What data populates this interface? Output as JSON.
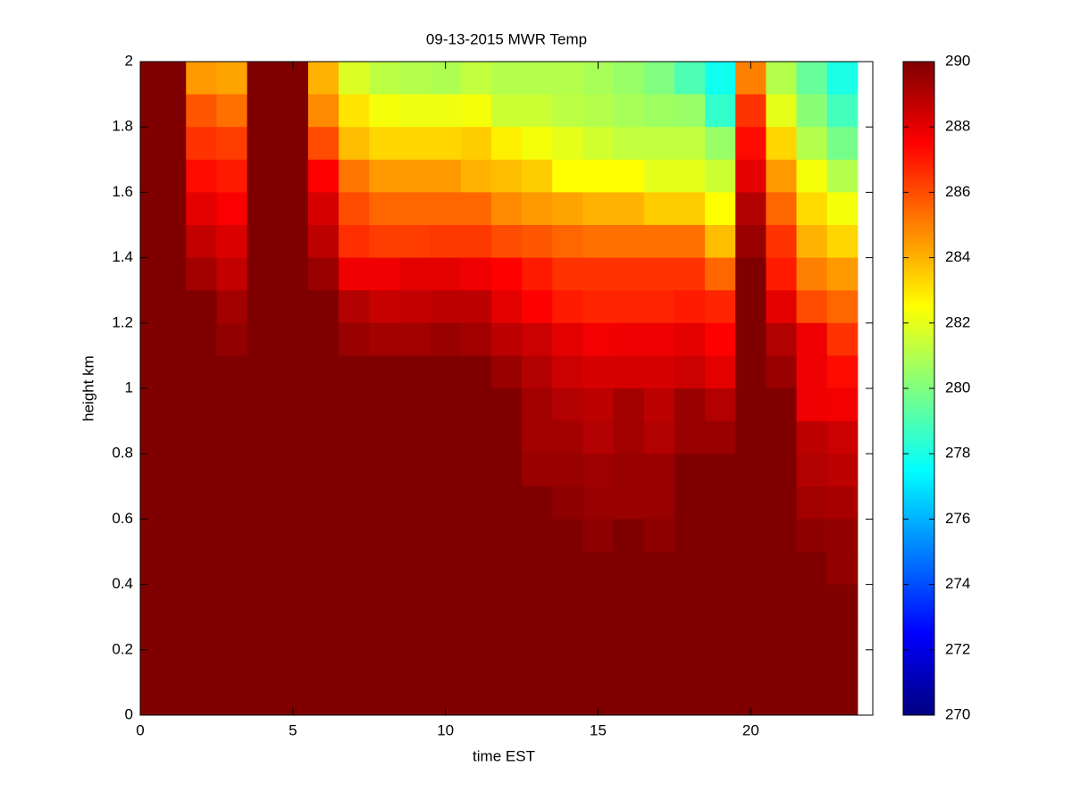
{
  "chart_data": {
    "type": "heatmap",
    "title": "09-13-2015 MWR Temp",
    "x_label": "time EST",
    "y_label": "height km",
    "xlim": [
      0,
      24
    ],
    "xticks": [
      0,
      5,
      10,
      15,
      20
    ],
    "ylim": [
      0,
      2
    ],
    "yticks": [
      0,
      0.2,
      0.4,
      0.6,
      0.8,
      1,
      1.2,
      1.4,
      1.6,
      1.8,
      2
    ],
    "clim": [
      270,
      290
    ],
    "cticks": [
      270,
      272,
      274,
      276,
      278,
      280,
      282,
      284,
      286,
      288,
      290
    ],
    "colormap": "jet",
    "xbins": [
      0,
      1.5,
      2.5,
      3.5,
      4.5,
      5.5,
      6.5,
      7.5,
      8.5,
      9.5,
      10.5,
      11.5,
      12.5,
      13.5,
      14.5,
      15.5,
      16.5,
      17.5,
      18.5,
      19.5,
      20.5,
      21.5,
      22.5,
      23.5
    ],
    "ybins": [
      2,
      1.9,
      1.8,
      1.7,
      1.6,
      1.5,
      1.4,
      1.3,
      1.2,
      1.1,
      1,
      0.9,
      0.8,
      0.7,
      0.6,
      0.5,
      0.4,
      0.3,
      0.2,
      0.1,
      0
    ],
    "z": [
      [
        290,
        290,
        290,
        290,
        290,
        290,
        290,
        290,
        290,
        290,
        290,
        290,
        290,
        290,
        290,
        290,
        290,
        290,
        290,
        290
      ],
      [
        284.5,
        285.8,
        286.5,
        287.3,
        288,
        288.7,
        289.3,
        290,
        290,
        290,
        290,
        290,
        290,
        290,
        290,
        290,
        290,
        290,
        290,
        290
      ],
      [
        284.3,
        285.3,
        286.3,
        287,
        287.6,
        288.2,
        288.7,
        289.3,
        289.6,
        290,
        290,
        290,
        290,
        290,
        290,
        290,
        290,
        290,
        290,
        290
      ],
      [
        290,
        290,
        290,
        290,
        290,
        290,
        290,
        290,
        290,
        290,
        290,
        290,
        290,
        290,
        290,
        290,
        290,
        290,
        290,
        290
      ],
      [
        290,
        290,
        290,
        290,
        290,
        290,
        290,
        290,
        290,
        290,
        290,
        290,
        290,
        290,
        290,
        290,
        290,
        290,
        290,
        290
      ],
      [
        284,
        284.8,
        286,
        287.5,
        288.3,
        288.8,
        289.5,
        290,
        290,
        290,
        290,
        290,
        290,
        290,
        290,
        290,
        290,
        290,
        290,
        290
      ],
      [
        281.8,
        283,
        283.8,
        285.2,
        286,
        286.6,
        287.8,
        289,
        289.5,
        290,
        290,
        290,
        290,
        290,
        290,
        290,
        290,
        290,
        290,
        290
      ],
      [
        281.2,
        282.3,
        283.3,
        284.5,
        285.5,
        286.3,
        287.8,
        288.6,
        289.3,
        290,
        290,
        290,
        290,
        290,
        290,
        290,
        290,
        290,
        290,
        290
      ],
      [
        281,
        282.2,
        283.3,
        284.5,
        285.5,
        286.3,
        288,
        288.7,
        289.3,
        290,
        290,
        290,
        290,
        290,
        290,
        290,
        290,
        290,
        290,
        290
      ],
      [
        280.9,
        282.2,
        283.3,
        284.5,
        285.5,
        286.4,
        288,
        288.8,
        289.5,
        290,
        290,
        290,
        290,
        290,
        290,
        290,
        290,
        290,
        290,
        290
      ],
      [
        281.3,
        282.3,
        283.5,
        284,
        285.5,
        286.4,
        287.8,
        288.8,
        289.3,
        290,
        290,
        290,
        290,
        290,
        290,
        290,
        290,
        290,
        290,
        290
      ],
      [
        281,
        281.5,
        282.8,
        283.8,
        284.8,
        286,
        287.5,
        288,
        288.8,
        289.5,
        290,
        290,
        290,
        290,
        290,
        290,
        290,
        290,
        290,
        290
      ],
      [
        281,
        281.5,
        282.3,
        283.5,
        284.5,
        285.8,
        287,
        287.5,
        288.5,
        289,
        289.3,
        289.3,
        289.5,
        290,
        290,
        290,
        290,
        290,
        290,
        290
      ],
      [
        281,
        281.2,
        282,
        282.5,
        284.3,
        285.5,
        286.5,
        287,
        288,
        288.5,
        289,
        289.3,
        289.5,
        289.7,
        290,
        290,
        290,
        290,
        290,
        290
      ],
      [
        280.8,
        281,
        281.6,
        282.5,
        284,
        285.3,
        286.5,
        286.8,
        287.7,
        288.3,
        288.8,
        289,
        289.4,
        289.5,
        289.7,
        290,
        290,
        290,
        290,
        290
      ],
      [
        280.5,
        280.8,
        281.3,
        282.5,
        284,
        285.3,
        286.5,
        286.8,
        287.8,
        288.3,
        289.3,
        289.3,
        289.5,
        289.5,
        290,
        290,
        290,
        290,
        290,
        290
      ],
      [
        280,
        280.6,
        281.3,
        282,
        283.5,
        285.3,
        286.5,
        286.8,
        287.8,
        288.3,
        288.8,
        289,
        289.5,
        289.5,
        289.7,
        290,
        290,
        290,
        290,
        290
      ],
      [
        279,
        280.5,
        281.3,
        282,
        283.5,
        285.3,
        286.5,
        287,
        288,
        288.5,
        289.5,
        289.5,
        290,
        290,
        290,
        290,
        290,
        290,
        290,
        290
      ],
      [
        277.8,
        278.5,
        280.5,
        281.5,
        282.5,
        283.8,
        285.5,
        286.8,
        287.5,
        288,
        289,
        289.5,
        290,
        290,
        290,
        290,
        290,
        290,
        290,
        290
      ],
      [
        285,
        286.5,
        287.3,
        288,
        289,
        289.5,
        290,
        290,
        290,
        290,
        290,
        290,
        290,
        290,
        290,
        290,
        290,
        290,
        290,
        290
      ],
      [
        281,
        282,
        283.3,
        284.5,
        285.5,
        286.5,
        287,
        288,
        289,
        289.5,
        290,
        290,
        290,
        290,
        290,
        290,
        290,
        290,
        290,
        290
      ],
      [
        279.5,
        280.2,
        281,
        282.3,
        283.2,
        284,
        285,
        286,
        287.8,
        287.8,
        287.8,
        288.8,
        289,
        289.3,
        289.7,
        290,
        290,
        290,
        290,
        290
      ],
      [
        278,
        278.8,
        279.8,
        281,
        282.3,
        283.3,
        284.5,
        285.5,
        286.5,
        287.3,
        287.7,
        288.5,
        288.8,
        289.2,
        289.6,
        289.6,
        290,
        290,
        290,
        290
      ]
    ]
  }
}
